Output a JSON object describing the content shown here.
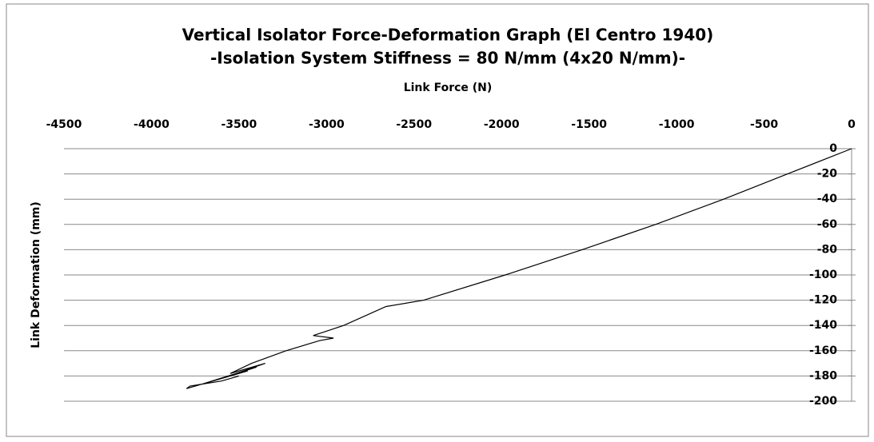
{
  "chart_data": {
    "type": "line",
    "title": "Vertical Isolator Force-Deformation Graph (El Centro 1940)",
    "subtitle": "-Isolation System Stiffness = 80 N/mm (4x20 N/mm)-",
    "x_label": "Link Force (N)",
    "y_label": "Link Deformation (mm)",
    "x": [
      0,
      -366,
      -731,
      -1120,
      -1540,
      -1979,
      -2445,
      -2660,
      -2902,
      -3076,
      -2960,
      -3040,
      -3231,
      -3428,
      -3550,
      -3350,
      -3600,
      -3400,
      -3700,
      -3450,
      -3800,
      -3780,
      -3600,
      -3500
    ],
    "values": [
      0,
      -20,
      -40,
      -60,
      -80,
      -100,
      -120,
      -125,
      -140,
      -148,
      -150,
      -152,
      -160,
      -170,
      -178,
      -170,
      -182,
      -173,
      -186,
      -176,
      -190,
      -188,
      -184,
      -180
    ],
    "color": "#000000",
    "xlim": [
      -4500,
      0
    ],
    "xticks": [
      -4500,
      -4000,
      -3500,
      -3000,
      -2500,
      -2000,
      -1500,
      -1000,
      -500,
      0
    ],
    "ylim": [
      -200,
      0
    ],
    "yticks": [
      0,
      -20,
      -40,
      -60,
      -80,
      -100,
      -120,
      -140,
      -160,
      -180,
      -200
    ],
    "grid": true
  }
}
